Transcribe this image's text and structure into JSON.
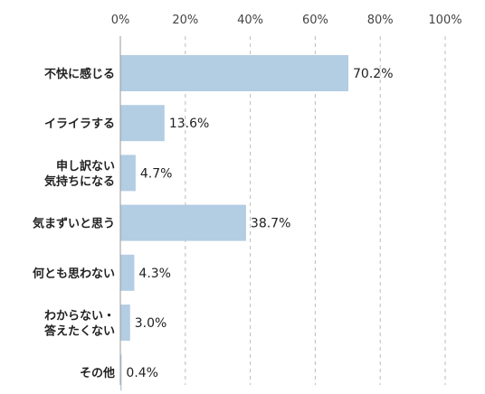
{
  "chart_data": {
    "type": "bar",
    "orientation": "horizontal",
    "title": "",
    "xlabel": "",
    "ylabel": "",
    "xlim": [
      0,
      100
    ],
    "x_ticks": [
      0,
      20,
      40,
      60,
      80,
      100
    ],
    "x_tick_labels": [
      "0%",
      "20%",
      "40%",
      "60%",
      "80%",
      "100%"
    ],
    "x_axis_position": "top",
    "grid": "vertical dashed",
    "legend": "none",
    "bar_color": "#b3cde3",
    "categories": [
      [
        "不快に感じる"
      ],
      [
        "イライラする"
      ],
      [
        "申し訳ない",
        "気持ちになる"
      ],
      [
        "気まずいと思う"
      ],
      [
        "何とも思わない"
      ],
      [
        "わからない・",
        "答えたくない"
      ],
      [
        "その他"
      ]
    ],
    "values": [
      70.2,
      13.6,
      4.7,
      38.7,
      4.3,
      3.0,
      0.4
    ],
    "value_labels": [
      "70.2%",
      "13.6%",
      "4.7%",
      "38.7%",
      "4.3%",
      "3.0%",
      "0.4%"
    ]
  }
}
